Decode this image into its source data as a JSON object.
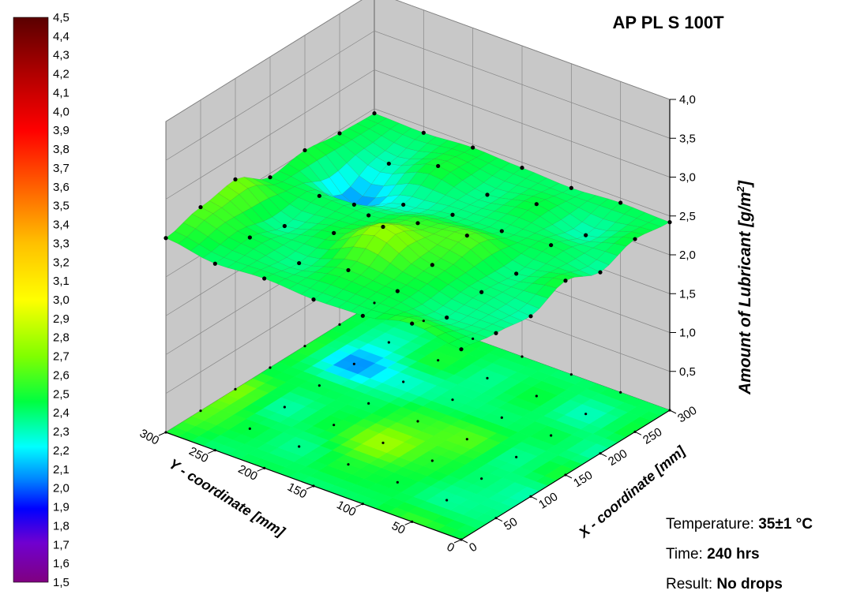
{
  "chart_data": {
    "type": "surface3d",
    "title": "AP PL S 100T",
    "xlabel": "X - coordinate [mm]",
    "ylabel": "Y - coordinate [mm]",
    "zlabel_main": "Amount of Lubricant [g/m",
    "zlabel_sup": "2",
    "zlabel_end": "]",
    "xlim": [
      0,
      300
    ],
    "ylim": [
      0,
      300
    ],
    "zlim": [
      0,
      4.0
    ],
    "x_ticks": [
      0,
      50,
      100,
      150,
      200,
      250,
      300
    ],
    "y_ticks": [
      0,
      50,
      100,
      150,
      200,
      250,
      300
    ],
    "z_ticks": [
      "0,5",
      "1,0",
      "1,5",
      "2,0",
      "2,5",
      "3,0",
      "3,5",
      "4,0"
    ],
    "x_tick_labels": [
      "0",
      "50",
      "100",
      "150",
      "200",
      "250",
      "300"
    ],
    "y_tick_labels": [
      "0",
      "50",
      "100",
      "150",
      "200",
      "250",
      "300"
    ],
    "colorbar_labels": [
      "4,5",
      "4,4",
      "4,3",
      "4,2",
      "4,1",
      "4,0",
      "3,9",
      "3,8",
      "3,7",
      "3,6",
      "3,5",
      "3,4",
      "3,3",
      "3,2",
      "3,1",
      "3,0",
      "2,9",
      "2,8",
      "2,7",
      "2,6",
      "2,5",
      "2,4",
      "2,3",
      "2,2",
      "2,1",
      "2,0",
      "1,9",
      "1,8",
      "1,7",
      "1,6",
      "1,5"
    ],
    "colorbar_range": [
      1.5,
      4.5
    ],
    "grid": true,
    "points": [
      [
        0,
        0,
        2.45
      ],
      [
        50,
        0,
        2.38
      ],
      [
        100,
        0,
        2.32
      ],
      [
        150,
        0,
        2.5
      ],
      [
        200,
        0,
        2.33
      ],
      [
        250,
        0,
        2.48
      ],
      [
        300,
        0,
        2.42
      ],
      [
        0,
        50,
        2.55
      ],
      [
        50,
        50,
        2.35
      ],
      [
        100,
        50,
        2.4
      ],
      [
        150,
        50,
        2.36
      ],
      [
        200,
        50,
        2.45
      ],
      [
        250,
        50,
        2.3
      ],
      [
        300,
        50,
        2.44
      ],
      [
        0,
        100,
        2.42
      ],
      [
        50,
        100,
        2.46
      ],
      [
        100,
        100,
        2.52
      ],
      [
        150,
        100,
        2.62
      ],
      [
        200,
        100,
        2.4
      ],
      [
        250,
        100,
        2.47
      ],
      [
        300,
        100,
        2.4
      ],
      [
        0,
        150,
        2.4
      ],
      [
        50,
        150,
        2.5
      ],
      [
        100,
        150,
        2.78
      ],
      [
        150,
        150,
        2.55
      ],
      [
        200,
        150,
        2.38
      ],
      [
        250,
        150,
        2.36
      ],
      [
        300,
        150,
        2.43
      ],
      [
        0,
        200,
        2.44
      ],
      [
        50,
        200,
        2.36
      ],
      [
        100,
        200,
        2.47
      ],
      [
        150,
        200,
        2.42
      ],
      [
        200,
        200,
        2.28
      ],
      [
        250,
        200,
        2.5
      ],
      [
        300,
        200,
        2.46
      ],
      [
        0,
        250,
        2.4
      ],
      [
        50,
        250,
        2.46
      ],
      [
        100,
        250,
        2.33
      ],
      [
        150,
        250,
        2.44
      ],
      [
        200,
        250,
        2.05
      ],
      [
        250,
        250,
        2.3
      ],
      [
        300,
        250,
        2.42
      ],
      [
        0,
        300,
        2.5
      ],
      [
        50,
        300,
        2.62
      ],
      [
        100,
        300,
        2.7
      ],
      [
        150,
        300,
        2.45
      ],
      [
        200,
        300,
        2.52
      ],
      [
        250,
        300,
        2.46
      ],
      [
        300,
        300,
        2.44
      ]
    ]
  },
  "info": {
    "temperature_label": "Temperature:",
    "temperature_value": "35±1 °C",
    "time_label": "Time:",
    "time_value": "240 hrs",
    "result_label": "Result:",
    "result_value": "No drops"
  }
}
